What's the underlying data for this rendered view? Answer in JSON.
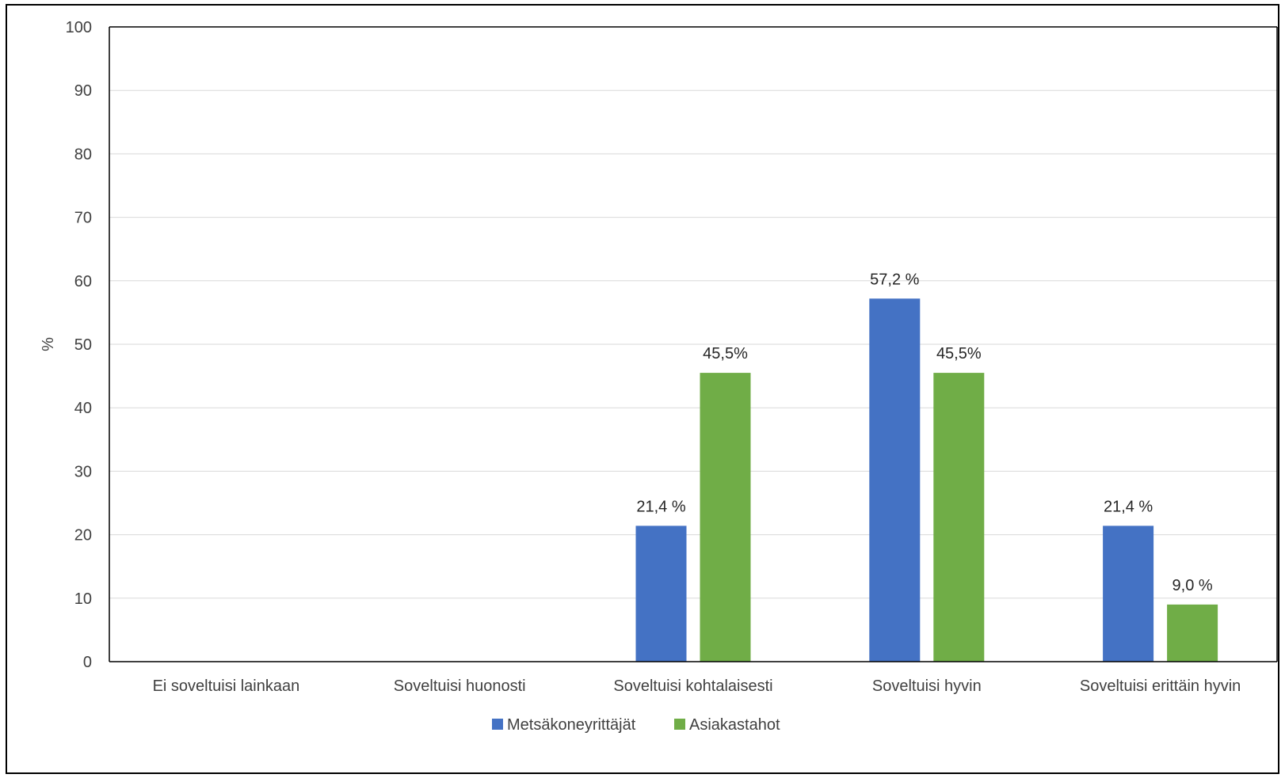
{
  "chart_data": {
    "type": "bar",
    "title": "",
    "xlabel": "",
    "ylabel": "%",
    "ylim": [
      0,
      100
    ],
    "yticks": [
      0,
      10,
      20,
      30,
      40,
      50,
      60,
      70,
      80,
      90,
      100
    ],
    "grid": true,
    "legend_position": "bottom",
    "categories": [
      "Ei soveltuisi lainkaan",
      "Soveltuisi huonosti",
      "Soveltuisi kohtalaisesti",
      "Soveltuisi hyvin",
      "Soveltuisi erittäin hyvin"
    ],
    "series": [
      {
        "name": "Metsäkoneyrittäjät",
        "color": "#4472C4",
        "values": [
          0,
          0,
          21.4,
          57.2,
          21.4
        ],
        "labels": [
          "",
          "",
          "21,4 %",
          "57,2 %",
          "21,4 %"
        ]
      },
      {
        "name": "Asiakastahot",
        "color": "#70AD47",
        "values": [
          0,
          0,
          45.5,
          45.5,
          9.0
        ],
        "labels": [
          "",
          "",
          "45,5%",
          "45,5%",
          "9,0 %"
        ]
      }
    ]
  }
}
